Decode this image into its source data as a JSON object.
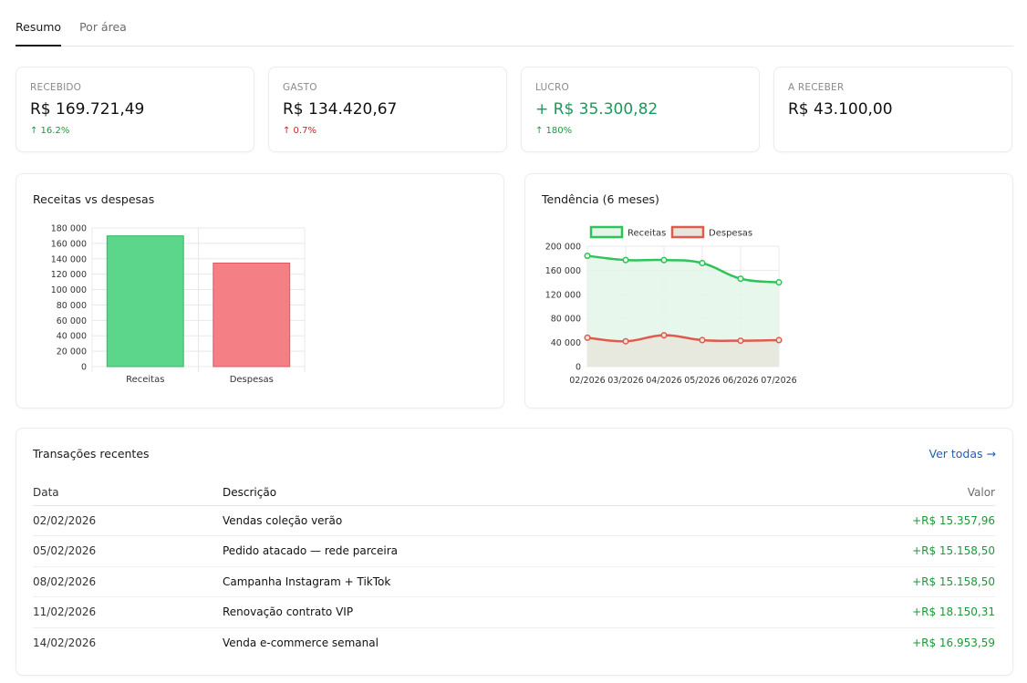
{
  "tabs": [
    {
      "label": "Resumo",
      "active": true
    },
    {
      "label": "Por área",
      "active": false
    }
  ],
  "stats": [
    {
      "label": "RECEBIDO",
      "value": "R$ 169.721,49",
      "change": "↑ 16.2%",
      "trend": "up-green"
    },
    {
      "label": "GASTO",
      "value": "R$ 134.420,67",
      "change": "↑ 0.7%",
      "trend": "up-red"
    },
    {
      "label": "LUCRO",
      "value": "+ R$ 35.300,82",
      "change": "↑ 180%",
      "trend": "up-green"
    },
    {
      "label": "A RECEBER",
      "value": "R$ 43.100,00",
      "change": "",
      "trend": ""
    }
  ],
  "chart_data": [
    {
      "type": "bar",
      "title": "Receitas vs despesas",
      "categories": [
        "Receitas",
        "Despesas"
      ],
      "values": [
        169721.49,
        134420.67
      ],
      "colors": [
        "#5cd68a",
        "#f47f84"
      ],
      "border_colors": [
        "#2fb866",
        "#e05a60"
      ],
      "ylim": [
        0,
        180000
      ],
      "yticks": [
        0,
        20000,
        40000,
        60000,
        80000,
        100000,
        120000,
        140000,
        160000,
        180000
      ],
      "ytick_labels": [
        "0",
        "20 000",
        "40 000",
        "60 000",
        "80 000",
        "100 000",
        "120 000",
        "140 000",
        "160 000",
        "180 000"
      ],
      "grid": true
    },
    {
      "type": "area",
      "title": "Tendência (6 meses)",
      "x": [
        "02/2026",
        "03/2026",
        "04/2026",
        "05/2026",
        "06/2026",
        "07/2026"
      ],
      "series": [
        {
          "name": "Receitas",
          "values": [
            184000,
            177000,
            177000,
            172000,
            146000,
            140000
          ],
          "color": "#2fc45a",
          "fill": "#e3f6e8"
        },
        {
          "name": "Despesas",
          "values": [
            48000,
            42000,
            52000,
            44000,
            43000,
            44000
          ],
          "color": "#e05a4f",
          "fill": "#e8e6dc"
        }
      ],
      "ylim": [
        0,
        200000
      ],
      "yticks": [
        0,
        40000,
        80000,
        120000,
        160000,
        200000
      ],
      "ytick_labels": [
        "0",
        "40 000",
        "80 000",
        "120 000",
        "160 000",
        "200 000"
      ],
      "legend": "top",
      "grid": true
    }
  ],
  "transactions": {
    "title": "Transações recentes",
    "link": "Ver todas →",
    "headers": {
      "date": "Data",
      "desc": "Descrição",
      "value": "Valor"
    },
    "rows": [
      {
        "date": "02/02/2026",
        "desc": "Vendas coleção verão",
        "value": "+R$ 15.357,96"
      },
      {
        "date": "05/02/2026",
        "desc": "Pedido atacado — rede parceira",
        "value": "+R$ 15.158,50"
      },
      {
        "date": "08/02/2026",
        "desc": "Campanha Instagram + TikTok",
        "value": "+R$ 15.158,50"
      },
      {
        "date": "11/02/2026",
        "desc": "Renovação contrato VIP",
        "value": "+R$ 18.150,31"
      },
      {
        "date": "14/02/2026",
        "desc": "Venda e-commerce semanal",
        "value": "+R$ 16.953,59"
      }
    ]
  }
}
